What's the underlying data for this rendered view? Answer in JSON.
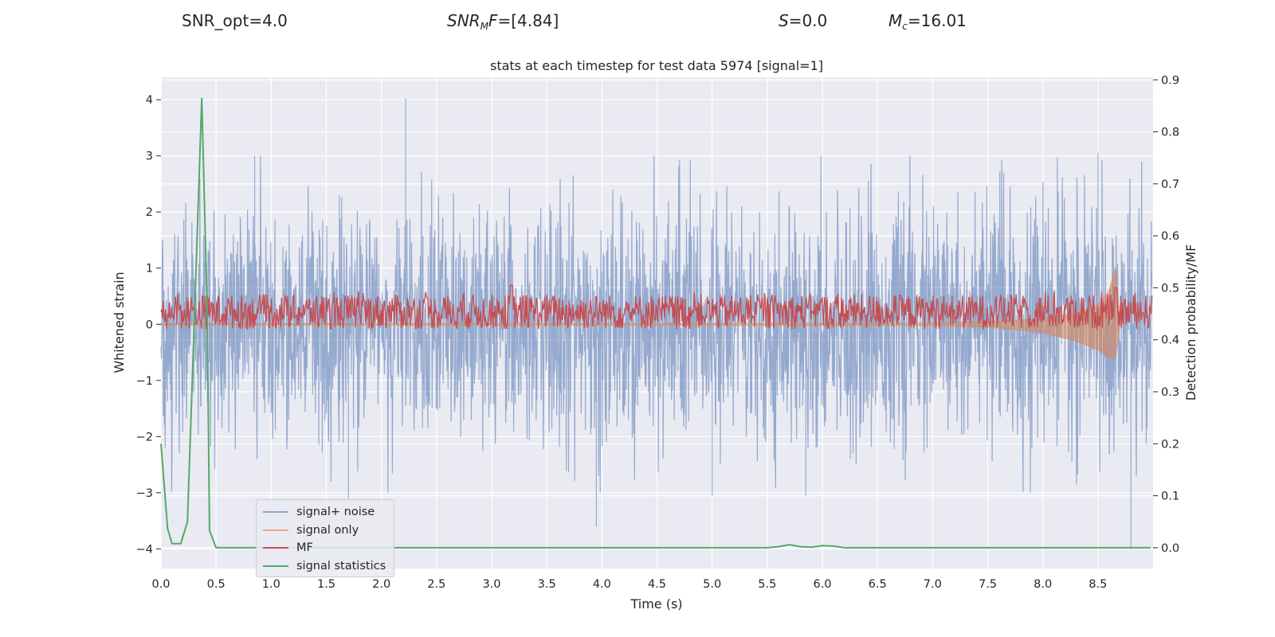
{
  "header": {
    "snr_opt": "SNR_opt=4.0",
    "snr_mf_sym": "SNR",
    "snr_mf_sub": "M",
    "snr_mf_sym2": "F",
    "snr_mf_val": "=[4.84]",
    "s_sym": "S",
    "s_val": "=0.0",
    "mc_sym": "M",
    "mc_sub": "c",
    "mc_val": "=16.01"
  },
  "chart_data": {
    "type": "line",
    "title": "stats at each timestep for test data 5974 [signal=1]",
    "xlabel": "Time (s)",
    "ylabel": "Whitened strain",
    "y2label": "Detection probability/MF",
    "xlim": [
      0.0,
      9.0
    ],
    "ylim": [
      -4.35,
      4.4
    ],
    "y2lim": [
      -0.04,
      0.905
    ],
    "xticks": [
      "0.0",
      "0.5",
      "1.0",
      "1.5",
      "2.0",
      "2.5",
      "3.0",
      "3.5",
      "4.0",
      "4.5",
      "5.0",
      "5.5",
      "6.0",
      "6.5",
      "7.0",
      "7.5",
      "8.0",
      "8.5"
    ],
    "yticks": [
      "−4",
      "−3",
      "−2",
      "−1",
      "0",
      "1",
      "2",
      "3",
      "4"
    ],
    "y2ticks": [
      "0.0",
      "0.1",
      "0.2",
      "0.3",
      "0.4",
      "0.5",
      "0.6",
      "0.7",
      "0.8",
      "0.9"
    ],
    "grid": true,
    "legend_position": "lower-left",
    "colors": {
      "background": "#eaeaf2",
      "signal_noise": "#4c72b0",
      "signal_only": "#dd8452",
      "mf": "#c44e52",
      "statistics": "#55a868"
    },
    "series": [
      {
        "name": "signal+ noise",
        "axis": "left",
        "description_range": [
          -4.0,
          4.0
        ],
        "peaks": [
          [
            2.22,
            4.02
          ],
          [
            0.85,
            3.0
          ],
          [
            8.5,
            3.05
          ],
          [
            3.95,
            -3.6
          ],
          [
            8.8,
            -4.0
          ],
          [
            5.0,
            -3.05
          ],
          [
            5.85,
            -3.05
          ],
          [
            1.7,
            -3.1
          ]
        ]
      },
      {
        "name": "signal only",
        "axis": "left",
        "x": [
          0.0,
          7.0,
          7.5,
          8.0,
          8.3,
          8.5,
          8.6,
          8.66,
          8.7
        ],
        "y_upper": [
          0.01,
          0.02,
          0.05,
          0.1,
          0.2,
          0.35,
          0.6,
          1.0,
          0.0
        ],
        "y_lower": [
          -0.01,
          -0.02,
          -0.05,
          -0.15,
          -0.3,
          -0.45,
          -0.6,
          -0.6,
          0.0
        ]
      },
      {
        "name": "MF",
        "axis": "right",
        "range": [
          0.42,
          0.51
        ],
        "peaks": [
          [
            3.18,
            0.505
          ],
          [
            8.66,
            0.5
          ]
        ]
      },
      {
        "name": "signal statistics",
        "axis": "right",
        "x": [
          0.0,
          0.06,
          0.1,
          0.18,
          0.24,
          0.3,
          0.37,
          0.42,
          0.44,
          0.5,
          5.5,
          5.6,
          5.7,
          5.8,
          5.9,
          6.0,
          6.1,
          6.2,
          8.98
        ],
        "y": [
          0.2,
          0.037,
          0.008,
          0.008,
          0.05,
          0.42,
          0.865,
          0.45,
          0.033,
          0.0,
          0.0,
          0.002,
          0.006,
          0.002,
          0.001,
          0.004,
          0.003,
          0.0,
          0.0
        ]
      }
    ]
  }
}
